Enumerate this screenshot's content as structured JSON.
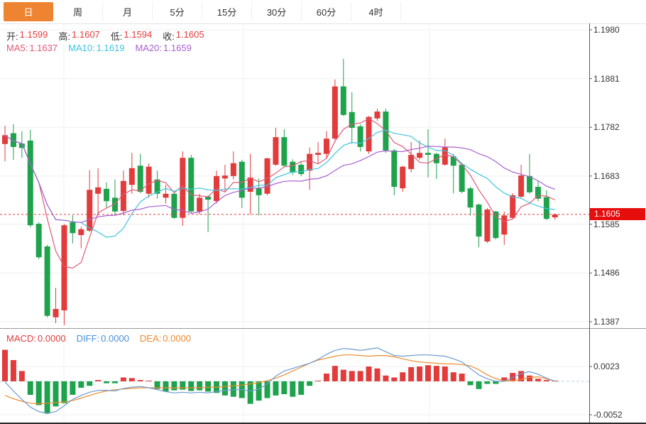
{
  "toolbar": {
    "tabs": [
      {
        "label": "日",
        "active": true
      },
      {
        "label": "周",
        "active": false
      },
      {
        "label": "月",
        "active": false
      },
      {
        "label": "5分",
        "active": false
      },
      {
        "label": "15分",
        "active": false
      },
      {
        "label": "30分",
        "active": false
      },
      {
        "label": "60分",
        "active": false
      },
      {
        "label": "4时",
        "active": false
      }
    ]
  },
  "ohlc_legend": {
    "open_label": "开:",
    "open": "1.1599",
    "high_label": "高:",
    "high": "1.1607",
    "low_label": "低:",
    "low": "1.1594",
    "close_label": "收:",
    "close": "1.1605"
  },
  "ma_legend": {
    "ma5_label": "MA5:",
    "ma5": "1.1637",
    "ma10_label": "MA10:",
    "ma10": "1.1619",
    "ma20_label": "MA20:",
    "ma20": "1.1659"
  },
  "macd_legend": {
    "macd_label": "MACD:",
    "macd": "0.0000",
    "diff_label": "DIFF:",
    "diff": "0.0000",
    "dea_label": "DEA:",
    "dea": "0.0000"
  },
  "price_axis": {
    "ticks": [
      "1.1980",
      "1.1881",
      "1.1782",
      "1.1683",
      "1.1585",
      "1.1486",
      "1.1387"
    ],
    "current_price": "1.1605"
  },
  "macd_axis": {
    "ticks": [
      "0.0023",
      "-0.0052"
    ]
  },
  "colors": {
    "up": "#e23b3b",
    "down": "#1ea24c",
    "active_tab_bg": "#ee8432",
    "ma5": "#e25878",
    "ma10": "#3fc4de",
    "ma20": "#a95fd0",
    "diff_line": "#6b9bd2",
    "dea_line": "#ef8a2d",
    "price_line": "#e24040",
    "price_badge_bg": "#e60d0d",
    "value_red": "#e23c3c",
    "macd_label_red": "#e23c3c",
    "diff_label_blue": "#4a90d9",
    "dea_label_orange": "#ef8a2d"
  },
  "chart_data": [
    {
      "type": "candlestick",
      "title": "Daily candles (日K)",
      "ylim": [
        1.1387,
        1.198
      ],
      "y_ticks": [
        1.198,
        1.1881,
        1.1782,
        1.1683,
        1.1585,
        1.1486,
        1.1387
      ],
      "current_price": 1.1605,
      "ma_periods": [
        5,
        10,
        20
      ],
      "open": [
        1.1748,
        1.177,
        1.1749,
        1.1755,
        1.1586,
        1.154,
        1.1396,
        1.141,
        1.1589,
        1.1563,
        1.1572,
        1.1647,
        1.1657,
        1.1639,
        1.1612,
        1.1665,
        1.1704,
        1.1647,
        1.1676,
        1.1639,
        1.1647,
        1.1598,
        1.172,
        1.1611,
        1.1641,
        1.1632,
        1.1678,
        1.1683,
        1.1712,
        1.1651,
        1.1658,
        1.1647,
        1.1706,
        1.1762,
        1.1712,
        1.1706,
        1.1694,
        1.1726,
        1.1728,
        1.1759,
        1.1865,
        1.1813,
        1.1784,
        1.1733,
        1.18,
        1.1814,
        1.1735,
        1.1658,
        1.1697,
        1.172,
        1.173,
        1.1728,
        1.1706,
        1.1723,
        1.1706,
        1.1658,
        1.1625,
        1.155,
        1.1611,
        1.1564,
        1.1598,
        1.1641,
        1.1683,
        1.1661,
        1.164,
        1.1599
      ],
      "high": [
        1.1785,
        1.1788,
        1.1774,
        1.1777,
        1.1589,
        1.1543,
        1.1456,
        1.1586,
        1.1603,
        1.158,
        1.1695,
        1.1699,
        1.167,
        1.1676,
        1.1694,
        1.173,
        1.1728,
        1.1709,
        1.1694,
        1.1665,
        1.1648,
        1.1733,
        1.1726,
        1.1647,
        1.1644,
        1.1694,
        1.1706,
        1.1733,
        1.1716,
        1.1728,
        1.1678,
        1.172,
        1.1781,
        1.1778,
        1.1717,
        1.1712,
        1.1741,
        1.1752,
        1.1774,
        1.1879,
        1.1921,
        1.1853,
        1.1788,
        1.1805,
        1.182,
        1.182,
        1.1738,
        1.1704,
        1.1752,
        1.1755,
        1.1778,
        1.173,
        1.1759,
        1.1728,
        1.1709,
        1.1661,
        1.1627,
        1.1618,
        1.1612,
        1.1611,
        1.1648,
        1.1706,
        1.1728,
        1.1673,
        1.1654,
        1.1607
      ],
      "low": [
        1.1713,
        1.1716,
        1.172,
        1.1579,
        1.1514,
        1.1396,
        1.1384,
        1.138,
        1.1546,
        1.1536,
        1.1569,
        1.1603,
        1.1618,
        1.1603,
        1.1603,
        1.1647,
        1.1648,
        1.1639,
        1.1637,
        1.1627,
        1.1596,
        1.1582,
        1.1608,
        1.1605,
        1.1569,
        1.1627,
        1.1651,
        1.1676,
        1.1618,
        1.1605,
        1.1603,
        1.1644,
        1.1704,
        1.1702,
        1.1685,
        1.1683,
        1.1655,
        1.1709,
        1.172,
        1.1756,
        1.1805,
        1.1749,
        1.1733,
        1.1728,
        1.1795,
        1.173,
        1.1644,
        1.1651,
        1.169,
        1.1716,
        1.168,
        1.1677,
        1.1704,
        1.1648,
        1.1648,
        1.1603,
        1.1538,
        1.1547,
        1.1554,
        1.1543,
        1.1596,
        1.1639,
        1.1647,
        1.1632,
        1.1593,
        1.1594
      ],
      "close": [
        1.1766,
        1.1742,
        1.174,
        1.1583,
        1.1518,
        1.1399,
        1.1413,
        1.1583,
        1.1567,
        1.1575,
        1.1655,
        1.166,
        1.1632,
        1.1611,
        1.1673,
        1.1699,
        1.1651,
        1.1702,
        1.1647,
        1.1647,
        1.1598,
        1.172,
        1.1611,
        1.1639,
        1.1635,
        1.1683,
        1.1684,
        1.1709,
        1.1639,
        1.168,
        1.1644,
        1.1719,
        1.1762,
        1.1704,
        1.169,
        1.1687,
        1.1728,
        1.173,
        1.1759,
        1.1865,
        1.1807,
        1.1781,
        1.1742,
        1.1803,
        1.1814,
        1.1735,
        1.1661,
        1.1702,
        1.1726,
        1.173,
        1.1726,
        1.1709,
        1.1741,
        1.1704,
        1.1651,
        1.1619,
        1.156,
        1.1615,
        1.1557,
        1.1603,
        1.1644,
        1.1684,
        1.165,
        1.1637,
        1.1596,
        1.1605
      ]
    },
    {
      "type": "bar",
      "title": "MACD",
      "ylim": [
        -0.0052,
        0.0023
      ],
      "y_ticks": [
        0.0023,
        -0.0052
      ],
      "values": [
        0.0049,
        0.0033,
        0.0016,
        -0.0021,
        -0.0037,
        -0.005,
        -0.0039,
        -0.0034,
        -0.0021,
        -0.001,
        -0.0007,
        0.0002,
        -0.0003,
        -0.0003,
        0.0006,
        0.0005,
        0.0002,
        0.0,
        -0.0012,
        -0.0016,
        -0.0014,
        -0.0013,
        -0.0015,
        -0.0014,
        -0.0016,
        -0.0018,
        -0.0022,
        -0.0024,
        -0.0026,
        -0.0035,
        -0.003,
        -0.0026,
        -0.0022,
        -0.002,
        -0.0024,
        -0.0021,
        -0.0007,
        0.0,
        0.0012,
        0.0024,
        0.0018,
        0.0016,
        0.0016,
        0.0023,
        0.002,
        0.0009,
        0.0006,
        0.0014,
        0.0022,
        0.0023,
        0.0025,
        0.0024,
        0.0023,
        0.0014,
        0.0012,
        -0.0006,
        -0.0012,
        -0.0004,
        -0.0004,
        0.0006,
        0.0013,
        0.0016,
        0.0009,
        0.0004,
        0.0002,
        0.0
      ],
      "series": [
        {
          "name": "DIFF",
          "values": [
            -0.0001,
            -0.0015,
            -0.0028,
            -0.004,
            -0.0047,
            -0.005,
            -0.0047,
            -0.0038,
            -0.0028,
            -0.0022,
            -0.0017,
            -0.0014,
            -0.0014,
            -0.0015,
            -0.0011,
            -0.0009,
            -0.0008,
            -0.001,
            -0.0013,
            -0.0016,
            -0.0018,
            -0.0017,
            -0.0018,
            -0.0017,
            -0.0018,
            -0.0016,
            -0.0014,
            -0.0013,
            -0.0013,
            -0.0015,
            -0.0012,
            -0.0004,
            0.0008,
            0.0016,
            0.002,
            0.0024,
            0.0028,
            0.0034,
            0.0042,
            0.0048,
            0.0051,
            0.005,
            0.0048,
            0.005,
            0.0052,
            0.0046,
            0.004,
            0.0039,
            0.004,
            0.0041,
            0.0041,
            0.004,
            0.0039,
            0.0035,
            0.003,
            0.002,
            0.001,
            0.0004,
            0.0,
            0.0,
            0.0006,
            0.0012,
            0.0015,
            0.0011,
            0.0005,
            0.0
          ]
        },
        {
          "name": "DEA",
          "values": [
            -0.0022,
            -0.0027,
            -0.0031,
            -0.0034,
            -0.0035,
            -0.0034,
            -0.0033,
            -0.0032,
            -0.003,
            -0.0026,
            -0.0022,
            -0.0018,
            -0.0015,
            -0.0013,
            -0.0012,
            -0.0011,
            -0.001,
            -0.001,
            -0.001,
            -0.001,
            -0.001,
            -0.001,
            -0.001,
            -0.001,
            -0.0009,
            -0.0009,
            -0.0008,
            -0.0007,
            -0.0006,
            -0.0004,
            -0.0002,
            0.0001,
            0.0005,
            0.001,
            0.0016,
            0.0022,
            0.0028,
            0.0033,
            0.0036,
            0.0039,
            0.0041,
            0.0041,
            0.004,
            0.0039,
            0.004,
            0.004,
            0.0038,
            0.0035,
            0.0032,
            0.003,
            0.0029,
            0.0028,
            0.0027,
            0.0027,
            0.0026,
            0.0024,
            0.0018,
            0.001,
            0.0004,
            0.0001,
            0.0001,
            0.0003,
            0.0006,
            0.0007,
            0.0004,
            0.0
          ]
        }
      ]
    }
  ]
}
